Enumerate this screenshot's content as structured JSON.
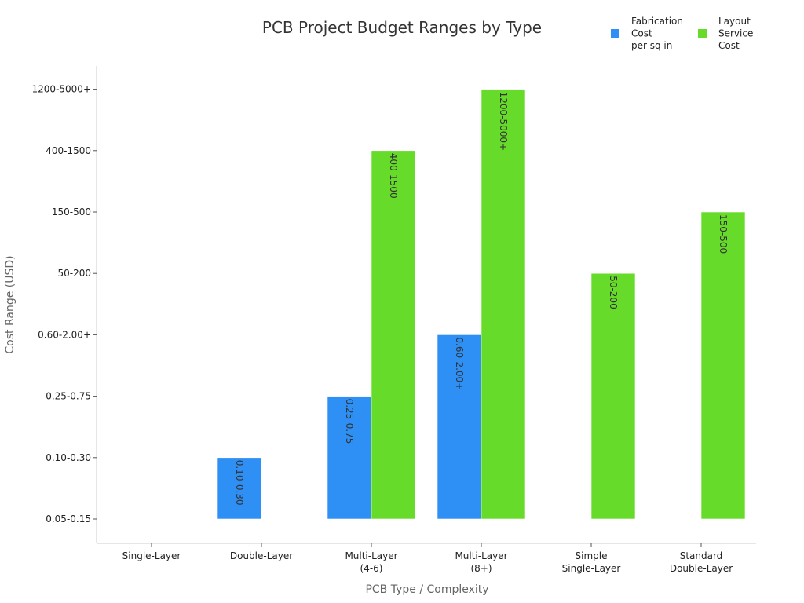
{
  "chart_data": {
    "type": "bar",
    "title": "PCB Project Budget Ranges by Type",
    "xlabel": "PCB Type / Complexity",
    "ylabel": "Cost Range (USD)",
    "categories": [
      [
        "Single-Layer"
      ],
      [
        "Double-Layer"
      ],
      [
        "Multi-Layer",
        "(4-6)"
      ],
      [
        "Multi-Layer",
        "(8+)"
      ],
      [
        "Simple",
        "Single-Layer"
      ],
      [
        "Standard",
        "Double-Layer"
      ]
    ],
    "y_ticks": [
      "0.05-0.15",
      "0.10-0.30",
      "0.25-0.75",
      "0.60-2.00+",
      "50-200",
      "150-500",
      "400-1500",
      "1200-5000+"
    ],
    "series": [
      {
        "name": [
          "Fabrication",
          "Cost",
          "per sq in"
        ],
        "color": "#2e8ff5",
        "values": [
          null,
          "0.10-0.30",
          "0.25-0.75",
          "0.60-2.00+",
          null,
          null
        ]
      },
      {
        "name": [
          "Layout",
          "Service",
          "Cost"
        ],
        "color": "#66db29",
        "values": [
          null,
          null,
          "400-1500",
          "1200-5000+",
          "50-200",
          "150-500"
        ]
      }
    ],
    "legend_position": "top-right",
    "grid": false
  }
}
